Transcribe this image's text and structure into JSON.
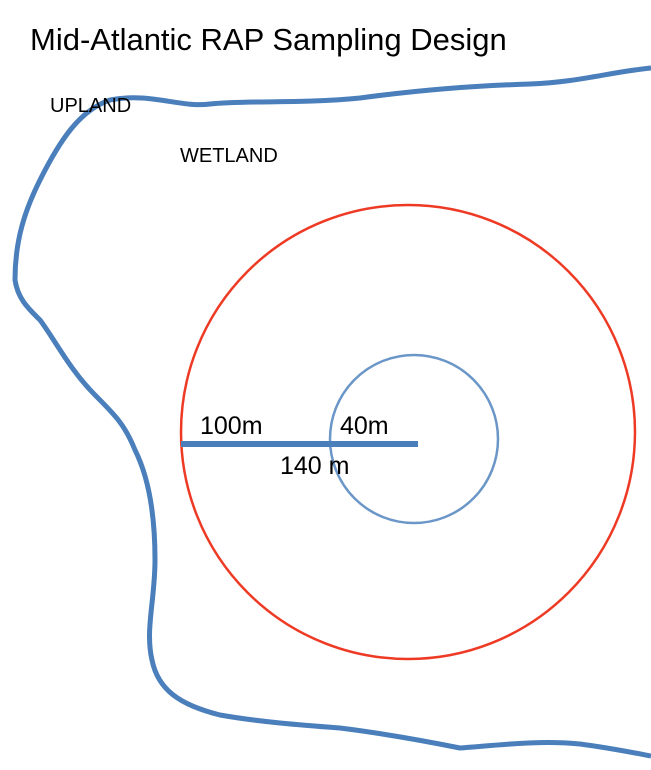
{
  "title": "Mid-Atlantic RAP Sampling Design",
  "regions": {
    "outer": "UPLAND",
    "inner": "WETLAND"
  },
  "radii": {
    "outer_segment": "100m",
    "inner_segment": "40m",
    "total": "140 m"
  }
}
